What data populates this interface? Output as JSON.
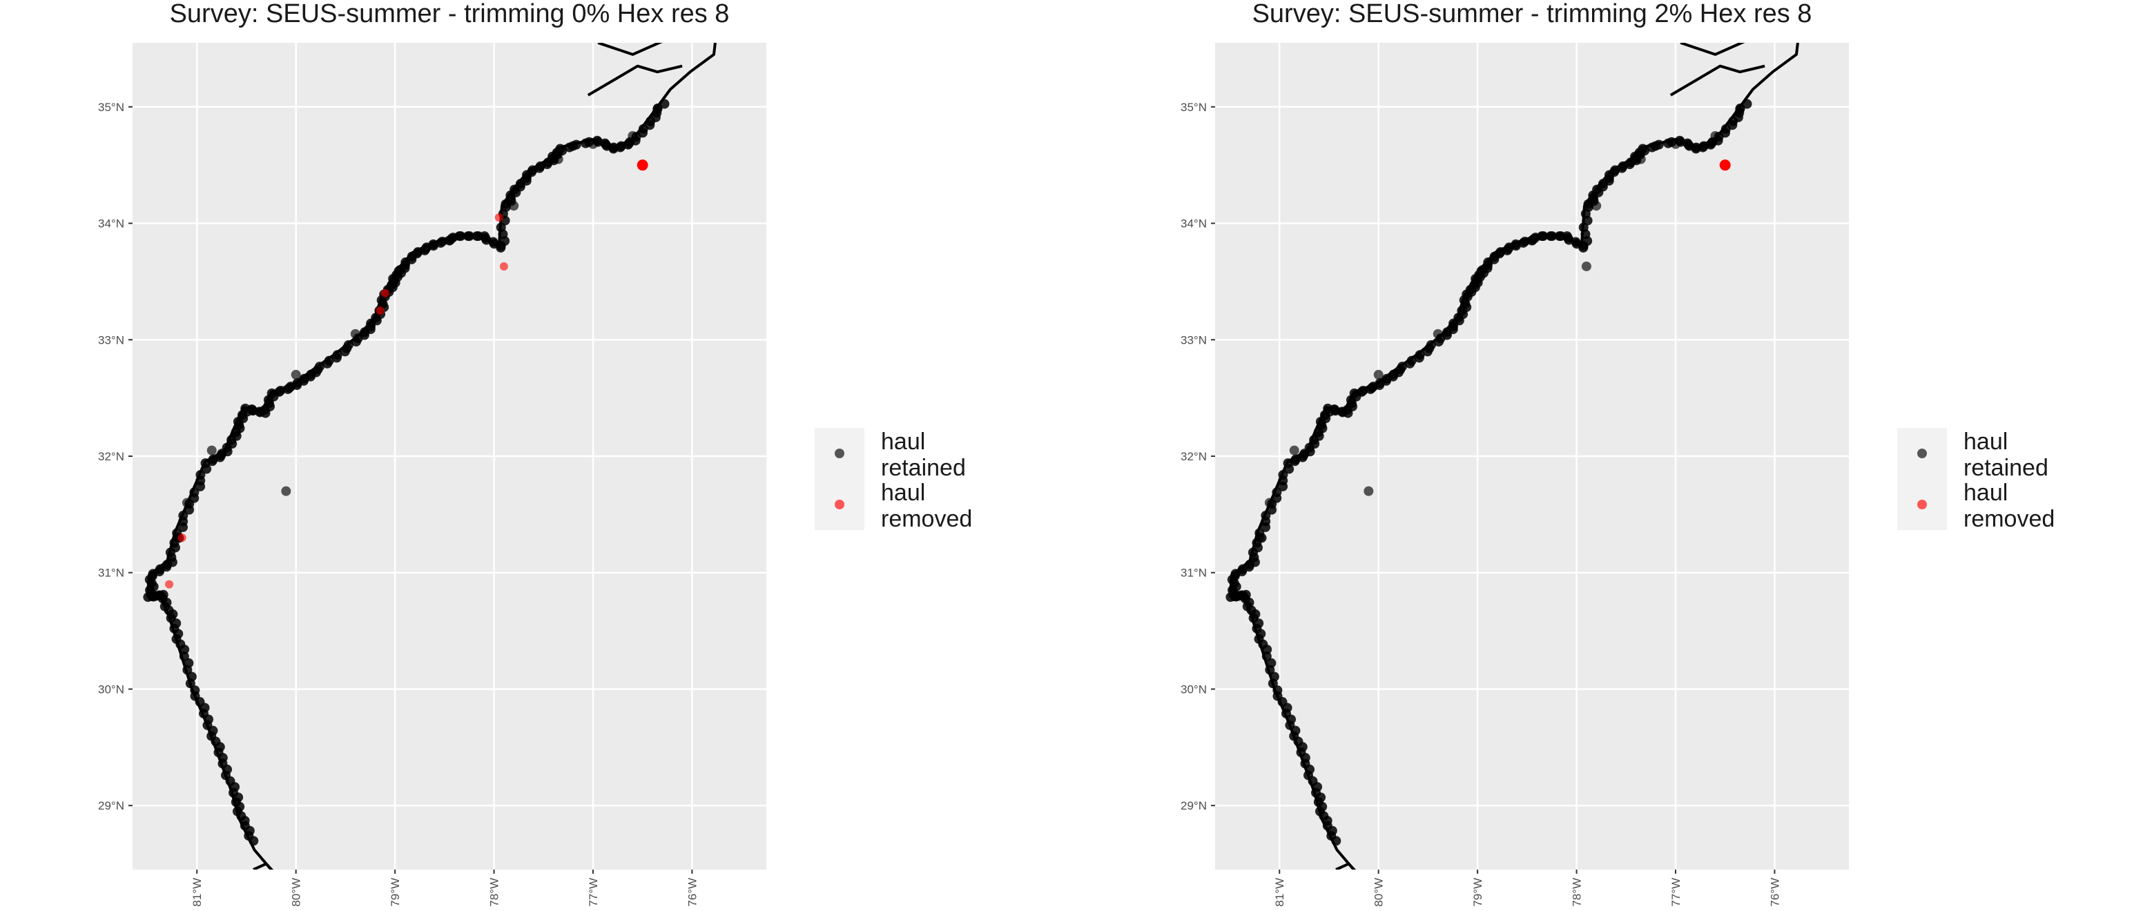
{
  "colors": {
    "panel_bg": "#ebebeb",
    "grid": "#ffffff",
    "coast": "#000000",
    "retained": "#000000",
    "removed": "#ff0000",
    "tick_text": "#4d4d4d",
    "legend_key_bg": "#f2f2f2"
  },
  "coastline": [
    [
      -80.25,
      28.45
    ],
    [
      -80.42,
      28.62
    ],
    [
      -80.57,
      28.88
    ],
    [
      -80.65,
      29.12
    ],
    [
      -80.78,
      29.42
    ],
    [
      -80.9,
      29.7
    ],
    [
      -81.05,
      30.0
    ],
    [
      -81.18,
      30.35
    ],
    [
      -81.28,
      30.62
    ],
    [
      -81.38,
      30.82
    ],
    [
      -81.5,
      30.8
    ],
    [
      -81.48,
      30.98
    ],
    [
      -81.3,
      31.1
    ],
    [
      -81.22,
      31.35
    ],
    [
      -81.07,
      31.65
    ],
    [
      -80.92,
      31.95
    ],
    [
      -80.72,
      32.05
    ],
    [
      -80.62,
      32.25
    ],
    [
      -80.53,
      32.42
    ],
    [
      -80.35,
      32.38
    ],
    [
      -80.25,
      32.55
    ],
    [
      -80.02,
      32.62
    ],
    [
      -79.85,
      32.73
    ],
    [
      -79.6,
      32.88
    ],
    [
      -79.35,
      33.05
    ],
    [
      -79.2,
      33.2
    ],
    [
      -79.13,
      33.38
    ],
    [
      -79.05,
      33.5
    ],
    [
      -78.98,
      33.6
    ],
    [
      -78.82,
      33.75
    ],
    [
      -78.62,
      33.83
    ],
    [
      -78.38,
      33.9
    ],
    [
      -78.15,
      33.9
    ],
    [
      -77.95,
      33.8
    ],
    [
      -77.92,
      34.15
    ],
    [
      -77.8,
      34.3
    ],
    [
      -77.65,
      34.45
    ],
    [
      -77.45,
      34.55
    ],
    [
      -77.35,
      34.65
    ],
    [
      -77.0,
      34.72
    ],
    [
      -76.8,
      34.65
    ],
    [
      -76.6,
      34.72
    ],
    [
      -76.42,
      34.92
    ],
    [
      -76.22,
      35.15
    ],
    [
      -76.02,
      35.3
    ],
    [
      -75.78,
      35.45
    ],
    [
      -75.72,
      35.9
    ]
  ],
  "islands": [
    [
      [
        -80.15,
        28.36
      ],
      [
        -80.3,
        28.5
      ],
      [
        -80.43,
        28.45
      ]
    ],
    [
      [
        -77.05,
        35.1
      ],
      [
        -76.75,
        35.25
      ],
      [
        -76.55,
        35.35
      ],
      [
        -76.35,
        35.3
      ],
      [
        -76.1,
        35.35
      ]
    ],
    [
      [
        -76.95,
        35.55
      ],
      [
        -76.6,
        35.45
      ],
      [
        -76.2,
        35.6
      ],
      [
        -75.95,
        35.62
      ]
    ]
  ],
  "panels": [
    {
      "title": "Survey: SEUS-summer - trimming 0% Hex res 8",
      "hauls_retained": [
        [
          -80.1,
          31.7
        ],
        [
          -77.8,
          34.15
        ],
        [
          -77.35,
          34.55
        ],
        [
          -80.0,
          32.7
        ],
        [
          -79.4,
          33.05
        ],
        [
          -78.95,
          33.6
        ],
        [
          -80.85,
          32.05
        ],
        [
          -81.1,
          31.6
        ],
        [
          -81.2,
          31.3
        ],
        [
          -78.45,
          33.85
        ],
        [
          -77.0,
          34.68
        ],
        [
          -76.6,
          34.75
        ],
        [
          -76.35,
          34.98
        ]
      ],
      "hauls_removed": [
        [
          -76.5,
          34.5
        ],
        [
          -77.9,
          33.63
        ],
        [
          -79.15,
          33.25
        ],
        [
          -79.1,
          33.4
        ],
        [
          -81.28,
          30.9
        ],
        [
          -81.15,
          31.3
        ],
        [
          -77.95,
          34.05
        ]
      ]
    },
    {
      "title": "Survey: SEUS-summer - trimming 2% Hex res 8",
      "hauls_retained": [
        [
          -80.1,
          31.7
        ],
        [
          -77.8,
          34.15
        ],
        [
          -77.35,
          34.55
        ],
        [
          -77.9,
          33.63
        ],
        [
          -80.0,
          32.7
        ],
        [
          -79.4,
          33.05
        ],
        [
          -78.95,
          33.6
        ],
        [
          -80.85,
          32.05
        ],
        [
          -81.1,
          31.6
        ],
        [
          -81.2,
          31.3
        ],
        [
          -78.45,
          33.85
        ],
        [
          -77.0,
          34.68
        ],
        [
          -76.6,
          34.75
        ],
        [
          -76.35,
          34.98
        ]
      ],
      "hauls_removed": [
        [
          -76.5,
          34.5
        ]
      ]
    }
  ],
  "axes": {
    "xlim": [
      -81.65,
      -75.25
    ],
    "ylim": [
      28.45,
      35.55
    ],
    "lon_ticks": [
      -81,
      -80,
      -79,
      -78,
      -77,
      -76
    ],
    "lat_ticks": [
      29,
      30,
      31,
      32,
      33,
      34,
      35
    ],
    "lon_labels": [
      "81°W",
      "80°W",
      "79°W",
      "78°W",
      "77°W",
      "76°W"
    ],
    "lat_labels": [
      "29°N",
      "30°N",
      "31°N",
      "32°N",
      "33°N",
      "34°N",
      "35°N"
    ]
  },
  "legend": {
    "items": [
      {
        "line1": "haul",
        "line2": "retained",
        "color": "#000000"
      },
      {
        "line1": "haul",
        "line2": "removed",
        "color": "#ff0000"
      }
    ]
  }
}
